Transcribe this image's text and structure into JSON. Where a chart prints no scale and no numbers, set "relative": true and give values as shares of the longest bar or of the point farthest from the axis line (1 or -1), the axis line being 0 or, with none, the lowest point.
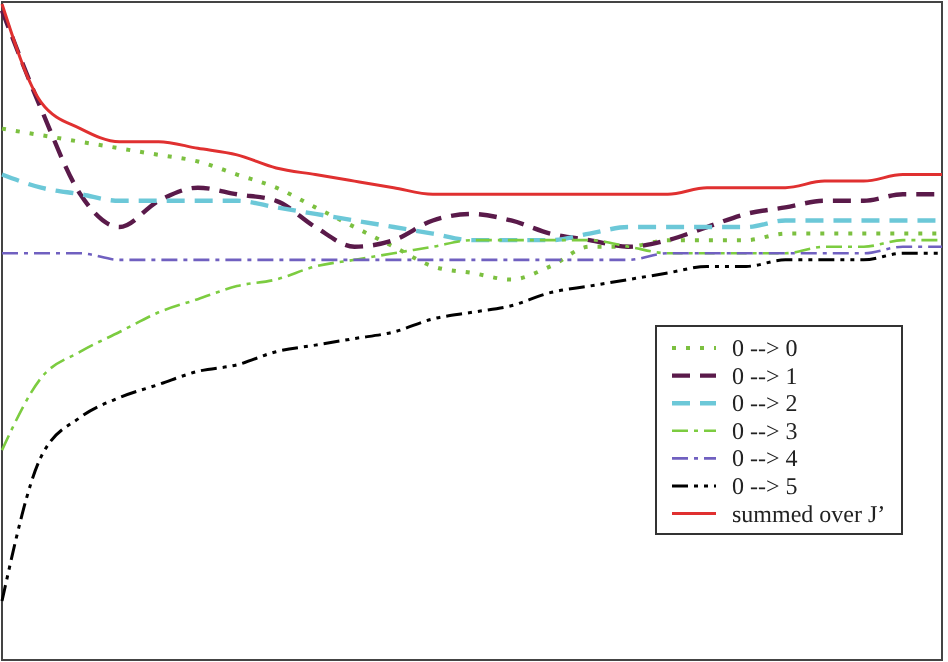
{
  "chart_data": {
    "type": "line",
    "relative": true,
    "legend": "bottom right",
    "categories": [
      null,
      null,
      null,
      null,
      null,
      null,
      null,
      null,
      null,
      null,
      null,
      null,
      null,
      null,
      null,
      null,
      null,
      null,
      null,
      null,
      null,
      null,
      null,
      null,
      null
    ],
    "series": [
      {
        "name": "0 --> 0",
        "color": "#7cc040",
        "line_style": "dotted",
        "values": [
          0.81,
          0.8,
          0.79,
          0.78,
          0.77,
          0.76,
          0.74,
          0.72,
          0.69,
          0.66,
          0.63,
          0.6,
          0.59,
          0.58,
          0.6,
          0.63,
          0.63,
          0.64,
          0.64,
          0.64,
          0.65,
          0.65,
          0.65,
          0.65,
          0.65
        ]
      },
      {
        "name": "0 --> 1",
        "color": "#5a1a4a",
        "line_style": "dashed",
        "values": [
          0.99,
          0.84,
          0.71,
          0.66,
          0.7,
          0.72,
          0.71,
          0.7,
          0.66,
          0.63,
          0.64,
          0.67,
          0.68,
          0.67,
          0.65,
          0.64,
          0.63,
          0.64,
          0.66,
          0.68,
          0.69,
          0.7,
          0.7,
          0.71,
          0.71
        ]
      },
      {
        "name": "0 --> 2",
        "color": "#6cc8d8",
        "line_style": "dashed",
        "values": [
          0.74,
          0.72,
          0.71,
          0.7,
          0.7,
          0.7,
          0.7,
          0.69,
          0.68,
          0.67,
          0.66,
          0.65,
          0.64,
          0.64,
          0.64,
          0.65,
          0.66,
          0.66,
          0.66,
          0.66,
          0.67,
          0.67,
          0.67,
          0.67,
          0.67
        ]
      },
      {
        "name": "0 --> 3",
        "color": "#7ccc40",
        "line_style": "dashdot",
        "values": [
          0.32,
          0.43,
          0.47,
          0.5,
          0.53,
          0.55,
          0.57,
          0.58,
          0.6,
          0.61,
          0.62,
          0.63,
          0.64,
          0.64,
          0.64,
          0.64,
          0.63,
          0.62,
          0.62,
          0.62,
          0.62,
          0.63,
          0.63,
          0.64,
          0.64
        ]
      },
      {
        "name": "0 --> 4",
        "color": "#7060c0",
        "line_style": "dashdot",
        "values": [
          0.62,
          0.62,
          0.62,
          0.61,
          0.61,
          0.61,
          0.61,
          0.61,
          0.61,
          0.61,
          0.61,
          0.61,
          0.61,
          0.61,
          0.61,
          0.61,
          0.61,
          0.62,
          0.62,
          0.62,
          0.62,
          0.62,
          0.62,
          0.63,
          0.63
        ]
      },
      {
        "name": "0 --> 5",
        "color": "#000000",
        "line_style": "dashdotdot",
        "values": [
          0.09,
          0.31,
          0.37,
          0.4,
          0.42,
          0.44,
          0.45,
          0.47,
          0.48,
          0.49,
          0.5,
          0.52,
          0.53,
          0.54,
          0.56,
          0.57,
          0.58,
          0.59,
          0.6,
          0.6,
          0.61,
          0.61,
          0.61,
          0.62,
          0.62
        ]
      },
      {
        "name": "summed over J’",
        "color": "#e03030",
        "line_style": "solid",
        "values": [
          1,
          0.85,
          0.81,
          0.79,
          0.79,
          0.78,
          0.77,
          0.75,
          0.74,
          0.73,
          0.72,
          0.71,
          0.71,
          0.71,
          0.71,
          0.71,
          0.71,
          0.71,
          0.72,
          0.72,
          0.72,
          0.73,
          0.73,
          0.74,
          0.74
        ]
      }
    ]
  }
}
